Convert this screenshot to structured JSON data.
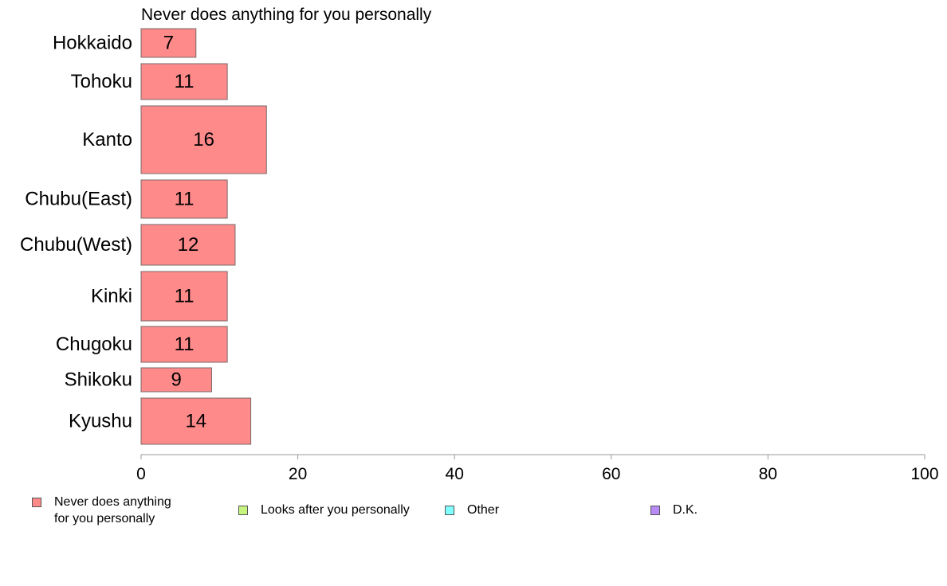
{
  "chart_data": {
    "type": "bar",
    "orientation": "horizontal",
    "title": "Never does anything for you personally",
    "categories": [
      "Hokkaido",
      "Tohoku",
      "Kanto",
      "Chubu(East)",
      "Chubu(West)",
      "Kinki",
      "Chugoku",
      "Shikoku",
      "Kyushu"
    ],
    "series": [
      {
        "name": "Never does anything\nfor you personally",
        "color": "#ff8a8a",
        "values": [
          7,
          11,
          16,
          11,
          12,
          11,
          11,
          9,
          14
        ]
      }
    ],
    "xlim": [
      0,
      100
    ],
    "xticks": [
      "0",
      "20",
      "40",
      "60",
      "80",
      "100"
    ],
    "xlabel": "",
    "ylabel": "",
    "grid": false,
    "legend": {
      "position": "bottom",
      "entries": [
        {
          "label": "Never does anything\nfor you personally",
          "color": "#ff8a8a"
        },
        {
          "label": "Looks after you personally",
          "color": "#c6f47e"
        },
        {
          "label": "Other",
          "color": "#7fffff"
        },
        {
          "label": "D.K.",
          "color": "#b88af5"
        }
      ]
    }
  }
}
